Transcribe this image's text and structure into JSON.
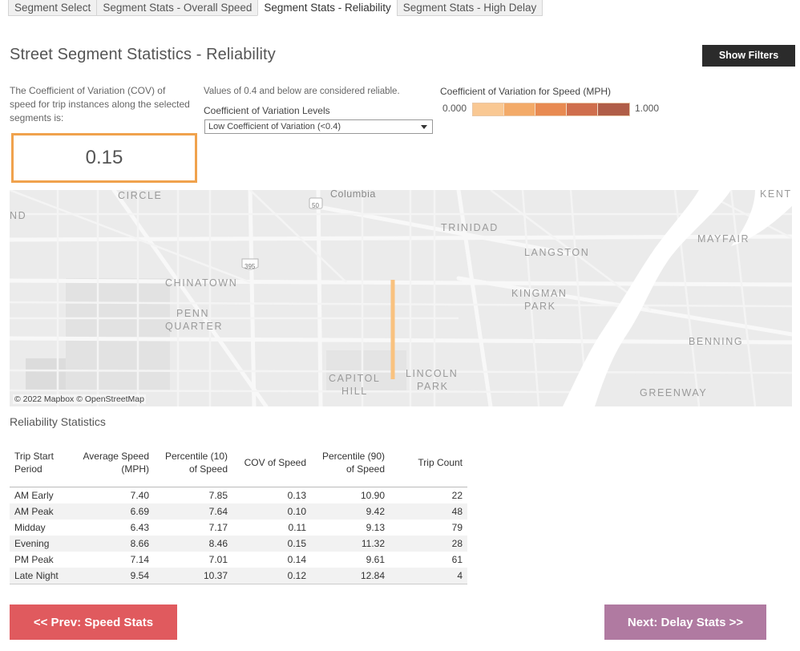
{
  "tabs": [
    {
      "label": "Segment Select"
    },
    {
      "label": "Segment Stats - Overall Speed"
    },
    {
      "label": "Segment Stats - Reliability",
      "active": true
    },
    {
      "label": "Segment Stats - High Delay"
    }
  ],
  "page": {
    "title": "Street Segment Statistics - Reliability",
    "show_filters": "Show Filters"
  },
  "cov": {
    "description": "The Coefficient of Variation (COV) of speed for trip instances along the selected segments is:",
    "value": "0.15",
    "box_color": "#f0a24d"
  },
  "levels": {
    "note": "Values of 0.4 and below are considered reliable.",
    "label": "Coefficient of Variation Levels",
    "selected": "Low Coefficient of Variation (<0.4)"
  },
  "legend": {
    "title": "Coefficient of Variation for Speed (MPH)",
    "min": "0.000",
    "max": "1.000",
    "colors": [
      "#f9c893",
      "#f3aa68",
      "#e88a51",
      "#cf6e4c",
      "#b05d47"
    ]
  },
  "map": {
    "attribution": "© 2022 Mapbox © OpenStreetMap",
    "labels": {
      "circle": "CIRCLE",
      "columbia": "Columbia",
      "kent": "KENT",
      "nd": "ND",
      "trinidad": "TRINIDAD",
      "mayfair": "MAYFAIR",
      "langston": "LANGSTON",
      "chinatown": "CHINATOWN",
      "kingman": "KINGMAN",
      "park1": "PARK",
      "penn": "PENN",
      "quarter": "QUARTER",
      "benning": "BENNING",
      "capitol": "CAPITOL",
      "hill": "HILL",
      "lincoln": "LINCOLN",
      "park2": "PARK",
      "greenway": "GREENWAY",
      "route50": "50",
      "route395": "395"
    },
    "segment_color": "#f9c27f"
  },
  "stats": {
    "title": "Reliability Statistics",
    "headers": {
      "period": [
        "Trip Start",
        "Period"
      ],
      "avg": [
        "Average Speed",
        "(MPH)"
      ],
      "p10": [
        "Percentile (10)",
        "of Speed"
      ],
      "cov": [
        "COV of Speed"
      ],
      "p90": [
        "Percentile (90)",
        "of Speed"
      ],
      "count": [
        "Trip Count"
      ]
    },
    "rows": [
      {
        "period": "AM Early",
        "avg": "7.40",
        "p10": "7.85",
        "cov": "0.13",
        "p90": "10.90",
        "count": "22"
      },
      {
        "period": "AM Peak",
        "avg": "6.69",
        "p10": "7.64",
        "cov": "0.10",
        "p90": "9.42",
        "count": "48"
      },
      {
        "period": "Midday",
        "avg": "6.43",
        "p10": "7.17",
        "cov": "0.11",
        "p90": "9.13",
        "count": "79"
      },
      {
        "period": "Evening",
        "avg": "8.66",
        "p10": "8.46",
        "cov": "0.15",
        "p90": "11.32",
        "count": "28"
      },
      {
        "period": "PM Peak",
        "avg": "7.14",
        "p10": "7.01",
        "cov": "0.14",
        "p90": "9.61",
        "count": "61"
      },
      {
        "period": "Late Night",
        "avg": "9.54",
        "p10": "10.37",
        "cov": "0.12",
        "p90": "12.84",
        "count": "4"
      }
    ]
  },
  "nav": {
    "prev": "<< Prev: Speed Stats",
    "next": "Next: Delay Stats >>"
  }
}
